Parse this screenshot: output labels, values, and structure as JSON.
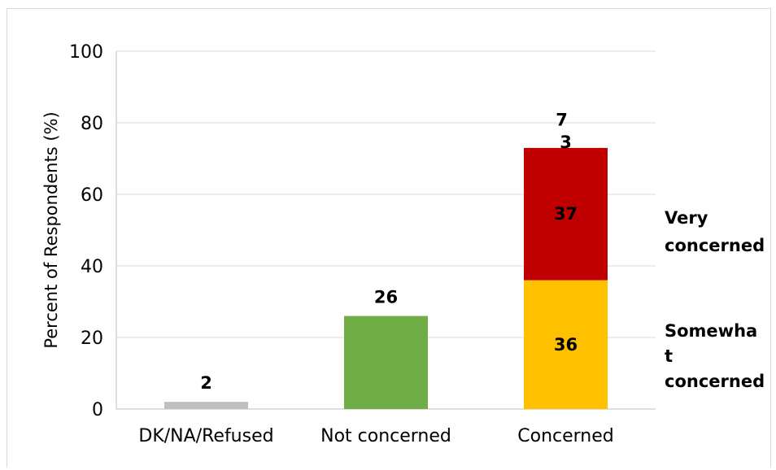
{
  "chart_data": {
    "type": "bar",
    "stacked": true,
    "categories": [
      "DK/NA/Refused",
      "Not concerned",
      "Concerned"
    ],
    "ylabel": "Percent of Respondents (%)",
    "ylim": [
      0,
      100
    ],
    "yticks": [
      0,
      20,
      40,
      60,
      80,
      100
    ],
    "grid": true,
    "bars": [
      {
        "category": "DK/NA/Refused",
        "segments": [
          {
            "value": 2,
            "label": "2",
            "color": "#bfbfbf"
          }
        ]
      },
      {
        "category": "Not concerned",
        "segments": [
          {
            "value": 26,
            "label": "26",
            "color": "#70ad47"
          }
        ]
      },
      {
        "category": "Concerned",
        "segments": [
          {
            "value": 36,
            "label": "36",
            "color": "#ffc000"
          },
          {
            "value": 37,
            "label": "37",
            "color": "#c00000"
          },
          {
            "value": 3,
            "label": "3",
            "color": "#ffffff"
          }
        ],
        "extra_label": "7"
      }
    ],
    "series_annotations": [
      {
        "text": "Very concerned",
        "lines": [
          "Very",
          "concerned"
        ]
      },
      {
        "text": "Somewhat concerned",
        "lines": [
          "Somewha",
          "t",
          "concerned"
        ]
      }
    ]
  }
}
